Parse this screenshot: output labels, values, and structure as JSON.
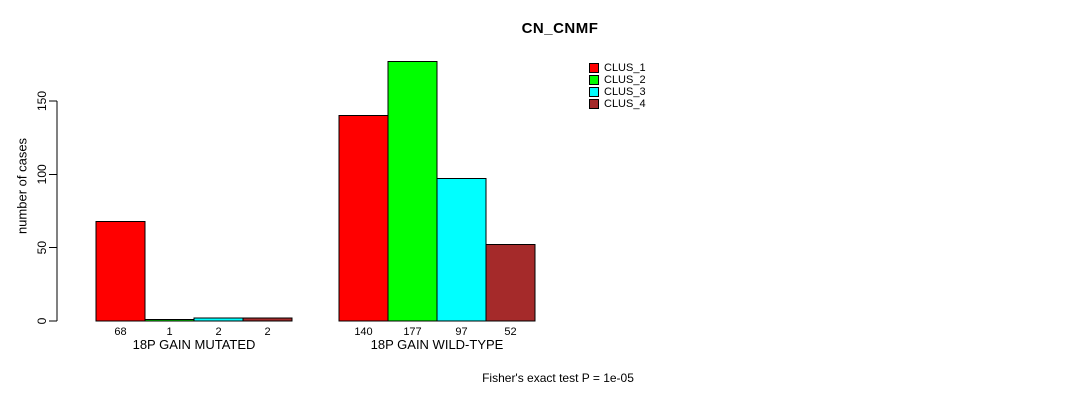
{
  "chart_data": {
    "type": "bar",
    "title": "CN_CNMF",
    "ylabel": "number of cases",
    "xlabel": "",
    "yticks": [
      0,
      50,
      100,
      150
    ],
    "ylim": [
      0,
      180
    ],
    "grid": false,
    "legend_position": "top-right",
    "bar_value_labels_shown": true,
    "categories": [
      "18P GAIN MUTATED",
      "18P GAIN WILD-TYPE"
    ],
    "series": [
      {
        "name": "CLUS_1",
        "color": "#ff0000",
        "values": [
          68,
          140
        ]
      },
      {
        "name": "CLUS_2",
        "color": "#00ff00",
        "values": [
          1,
          177
        ]
      },
      {
        "name": "CLUS_3",
        "color": "#00ffff",
        "values": [
          2,
          97
        ]
      },
      {
        "name": "CLUS_4",
        "color": "#a52a2a",
        "values": [
          2,
          52
        ]
      }
    ],
    "annotation": "Fisher's exact test P = 1e-05"
  }
}
